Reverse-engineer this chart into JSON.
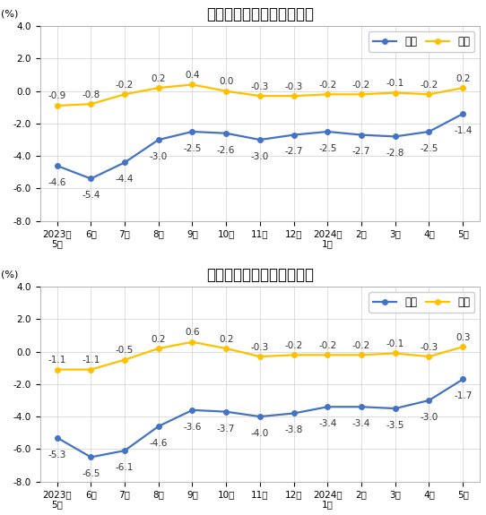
{
  "chart1": {
    "title": "工业生产者出厂价格涨跌幅",
    "yoy": [
      -4.6,
      -5.4,
      -4.4,
      -3.0,
      -2.5,
      -2.6,
      -3.0,
      -2.7,
      -2.5,
      -2.7,
      -2.8,
      -2.5,
      -1.4
    ],
    "mom": [
      -0.9,
      -0.8,
      -0.2,
      0.2,
      0.4,
      0.0,
      -0.3,
      -0.3,
      -0.2,
      -0.2,
      -0.1,
      -0.2,
      0.2
    ]
  },
  "chart2": {
    "title": "工业生产者购进价格涨跌幅",
    "yoy": [
      -5.3,
      -6.5,
      -6.1,
      -4.6,
      -3.6,
      -3.7,
      -4.0,
      -3.8,
      -3.4,
      -3.4,
      -3.5,
      -3.0,
      -1.7
    ],
    "mom": [
      -1.1,
      -1.1,
      -0.5,
      0.2,
      0.6,
      0.2,
      -0.3,
      -0.2,
      -0.2,
      -0.2,
      -0.1,
      -0.3,
      0.3
    ]
  },
  "x_labels": [
    "2023年\n5月",
    "6月",
    "7月",
    "8月",
    "9月",
    "10月",
    "11月",
    "12月",
    "2024年\n1月",
    "2月",
    "3月",
    "4月",
    "5月"
  ],
  "ylim": [
    -8.0,
    4.0
  ],
  "yticks": [
    -8.0,
    -6.0,
    -4.0,
    -2.0,
    0.0,
    2.0,
    4.0
  ],
  "ylabel": "(%)",
  "yoy_color": "#4472C4",
  "mom_color": "#FFC000",
  "yoy_label": "同比",
  "mom_label": "环比",
  "background_color": "#ffffff",
  "grid_color": "#d0d0d0",
  "title_fontsize": 12,
  "label_fontsize": 7.5,
  "tick_fontsize": 7.5,
  "legend_fontsize": 8.5,
  "ylabel_fontsize": 8
}
